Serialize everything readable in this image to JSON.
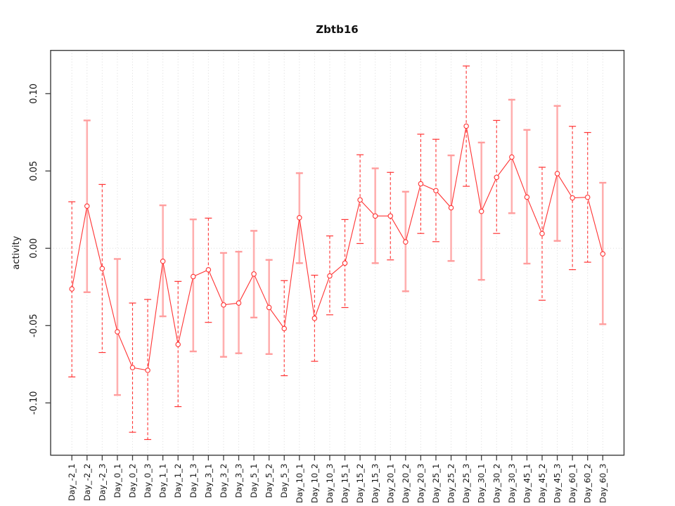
{
  "title": "Zbtb16",
  "colors": {
    "series_red": "#ff3333",
    "pale_error_bar": "#ffb0b0",
    "pale_cap": "#ff9d9d",
    "gridline": "#d9d9d9",
    "zero_line": "#dedede",
    "axis": "#3d3d3d",
    "text": "#111111",
    "background": "#ffffff"
  },
  "chart_data": {
    "type": "line",
    "title": "Zbtb16",
    "xlabel": "",
    "ylabel": "activity",
    "ylim": [
      -0.133,
      0.128
    ],
    "yticks": [
      0.1,
      0.05,
      0.0,
      -0.05,
      -0.1
    ],
    "ytick_labels": [
      "0.10",
      "0.05",
      "0.00",
      "-0.05",
      "-0.10"
    ],
    "grid": "dotted vertical gridline at every category; dotted horizontal reference line at y = 0",
    "legend": "none",
    "marker": "open-circle",
    "categories": [
      "Day_-2_1",
      "Day_-2_2",
      "Day_-2_3",
      "Day_0_1",
      "Day_0_2",
      "Day_0_3",
      "Day_1_1",
      "Day_1_2",
      "Day_1_3",
      "Day_3_1",
      "Day_3_2",
      "Day_3_3",
      "Day_5_1",
      "Day_5_2",
      "Day_5_3",
      "Day_10_1",
      "Day_10_2",
      "Day_10_3",
      "Day_15_1",
      "Day_15_2",
      "Day_15_3",
      "Day_20_1",
      "Day_20_2",
      "Day_20_3",
      "Day_25_1",
      "Day_25_2",
      "Day_25_3",
      "Day_30_1",
      "Day_30_2",
      "Day_30_3",
      "Day_45_1",
      "Day_45_2",
      "Day_45_3",
      "Day_60_1",
      "Day_60_2",
      "Day_60_3"
    ],
    "series": [
      {
        "name": "activity",
        "values": [
          -0.0263,
          0.0273,
          -0.0131,
          -0.054,
          -0.0772,
          -0.0789,
          -0.0084,
          -0.0622,
          -0.0183,
          -0.0139,
          -0.0366,
          -0.0354,
          -0.0166,
          -0.0383,
          -0.0519,
          0.0198,
          -0.0453,
          -0.0179,
          -0.0096,
          0.0313,
          0.0209,
          0.0209,
          0.0041,
          0.0417,
          0.0373,
          0.0262,
          0.079,
          0.0239,
          0.0459,
          0.059,
          0.0331,
          0.0095,
          0.0483,
          0.0326,
          0.033,
          -0.0036
        ]
      }
    ],
    "error_high": [
      0.0301,
      0.0827,
      0.0413,
      -0.0069,
      -0.0354,
      -0.0331,
      0.0278,
      -0.0214,
      0.0187,
      0.0195,
      -0.003,
      -0.0022,
      0.0113,
      -0.0075,
      -0.0209,
      0.0486,
      -0.0174,
      0.008,
      0.0186,
      0.0605,
      0.0517,
      0.0491,
      0.0366,
      0.0738,
      0.0705,
      0.0601,
      0.1179,
      0.0684,
      0.0827,
      0.0961,
      0.0766,
      0.0524,
      0.0921,
      0.0789,
      0.0749,
      0.0424
    ],
    "error_low": [
      -0.0832,
      -0.0284,
      -0.0674,
      -0.0949,
      -0.119,
      -0.1237,
      -0.044,
      -0.1024,
      -0.0667,
      -0.0479,
      -0.0702,
      -0.0679,
      -0.0448,
      -0.0684,
      -0.0824,
      -0.0096,
      -0.0731,
      -0.043,
      -0.0383,
      0.0031,
      -0.0096,
      -0.0075,
      -0.0278,
      0.0096,
      0.0043,
      -0.0082,
      0.0401,
      -0.0204,
      0.0096,
      0.0227,
      -0.0099,
      -0.0336,
      0.0048,
      -0.0138,
      -0.009,
      -0.0491
    ],
    "error_bar_style": [
      "dashed",
      "pale",
      "dashed",
      "pale",
      "dashed",
      "dashed",
      "pale",
      "dashed",
      "pale",
      "dashed",
      "pale",
      "pale",
      "pale",
      "pale",
      "dashed",
      "pale",
      "dashed",
      "dashed",
      "dashed",
      "dashed",
      "pale",
      "dashed",
      "pale",
      "dashed",
      "dashed",
      "pale",
      "dashed",
      "pale",
      "dashed",
      "pale",
      "pale",
      "dashed",
      "pale",
      "dashed",
      "dashed",
      "pale"
    ]
  }
}
